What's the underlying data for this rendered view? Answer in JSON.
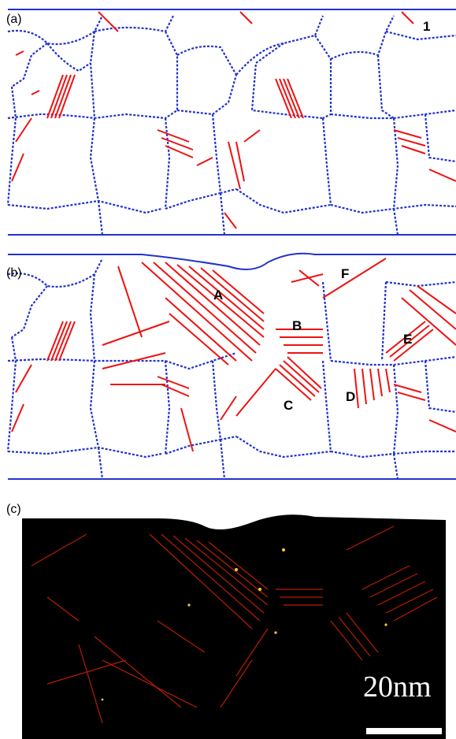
{
  "figure": {
    "panels": {
      "a": {
        "label": "(a)",
        "markers": [
          "1"
        ]
      },
      "b": {
        "label": "(b)",
        "markers": [
          "A",
          "B",
          "C",
          "D",
          "E",
          "F"
        ]
      },
      "c": {
        "label": "(c)",
        "scale_bar": "20nm"
      }
    },
    "colors": {
      "grain_boundary": "#2233cc",
      "dislocation": "#ee1111",
      "map_background": "#000000",
      "map_hot": "#ffcc33"
    }
  }
}
